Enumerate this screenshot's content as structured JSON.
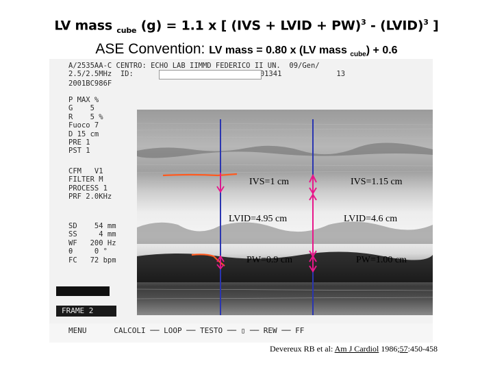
{
  "formula_cube": {
    "lead": "LV mass",
    "sub": "cube",
    "body": "(g) = 1.1 x [ (IVS + LVID + PW)",
    "exp1": "3",
    "mid": " - (LVID)",
    "exp2": "3",
    "tail": " ]"
  },
  "formula_ase": {
    "label": "ASE Convention:",
    "expr_a": "LV mass = 0.80 x (LV mass",
    "sub": "cube",
    "expr_b": ") + 0.6"
  },
  "echo_screen": {
    "header_line1": "A/2535AA-C CENTRO: ECHO LAB IIMMD FEDERICO II UN.  09/Gen/",
    "header_line2": "2.5/2.5MHz  ID:",
    "header_line2b": "# 001341",
    "header_line2c": "13",
    "header_line3": "2001BC986F",
    "params_top": "P MAX %\nG    5\nR    5 %\nFuoco 7\nD 15 cm\nPRE 1\nPST 1",
    "params_mid": "CFM   V1\nFILTER M\nPROCESS 1\nPRF 2.0KHz",
    "params_bottom": "SD    54 mm\nSS     4 mm\nWF   200 Hz\nθ     0 °\nFC   72 bpm",
    "frame_label": "FRAME  2",
    "menu": "MENU      CALCOLI ── LOOP ── TESTO ── ▯ ── REW ── FF"
  },
  "annotations": {
    "ivs_left": "IVS=1 cm",
    "ivs_right": "IVS=1.15 cm",
    "lvid_left": "LVID=4.95 cm",
    "lvid_right": "LVID=4.6 cm",
    "pw_left": "PW=0.9 cm",
    "pw_right": "PW=1.00 cm"
  },
  "citation": {
    "authors": "Devereux RB et al: ",
    "journal": "Am J Cardiol",
    "year_pre": " 1986;",
    "volume": "57",
    "pages": ":450-458"
  },
  "colors": {
    "blue_line": "#2a35b0",
    "magenta_arrow": "#e8178a",
    "orange_trace": "#ff5a1f"
  }
}
